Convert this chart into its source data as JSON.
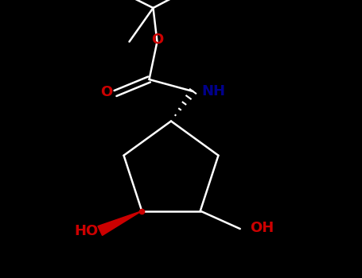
{
  "bg_color": "#000000",
  "line_color": "#ffffff",
  "o_color": "#cc0000",
  "nh_color": "#00008b",
  "oh_color": "#cc0000",
  "lw": 1.8,
  "figsize": [
    4.55,
    3.5
  ],
  "dpi": 100,
  "xlim": [
    0,
    9.1
  ],
  "ylim": [
    0,
    7.0
  ]
}
